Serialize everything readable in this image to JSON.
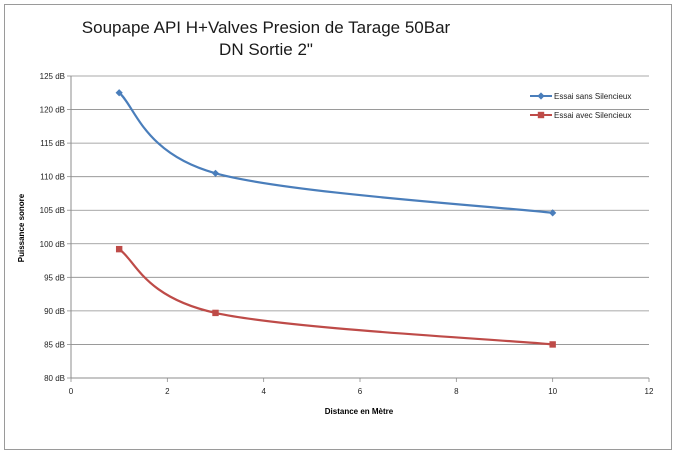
{
  "chart_data": {
    "type": "line",
    "title": [
      "Soupape API H+Valves Presion de Tarage 50Bar",
      "DN Sortie 2\""
    ],
    "xlabel": "Distance en Mètre",
    "ylabel": "Puissance sonore",
    "xlim": [
      0,
      12
    ],
    "ylim": [
      80,
      125
    ],
    "x_ticks": [
      "0",
      "2",
      "4",
      "6",
      "8",
      "10",
      "12"
    ],
    "y_ticks": [
      "80 dB",
      "85 dB",
      "90 dB",
      "95 dB",
      "100 dB",
      "105 dB",
      "110 dB",
      "115 dB",
      "120 dB",
      "125 dB"
    ],
    "grid": true,
    "legend_position": "top-right",
    "series": [
      {
        "name": "Essai sans Silencieux",
        "color": "#4a7ebb",
        "marker": "diamond",
        "x": [
          1,
          3,
          10
        ],
        "y": [
          122.5,
          110.5,
          104.6
        ]
      },
      {
        "name": "Essai avec Silencieux",
        "color": "#be4b48",
        "marker": "square",
        "x": [
          1,
          3,
          10
        ],
        "y": [
          99.2,
          89.7,
          85.0
        ]
      }
    ]
  }
}
